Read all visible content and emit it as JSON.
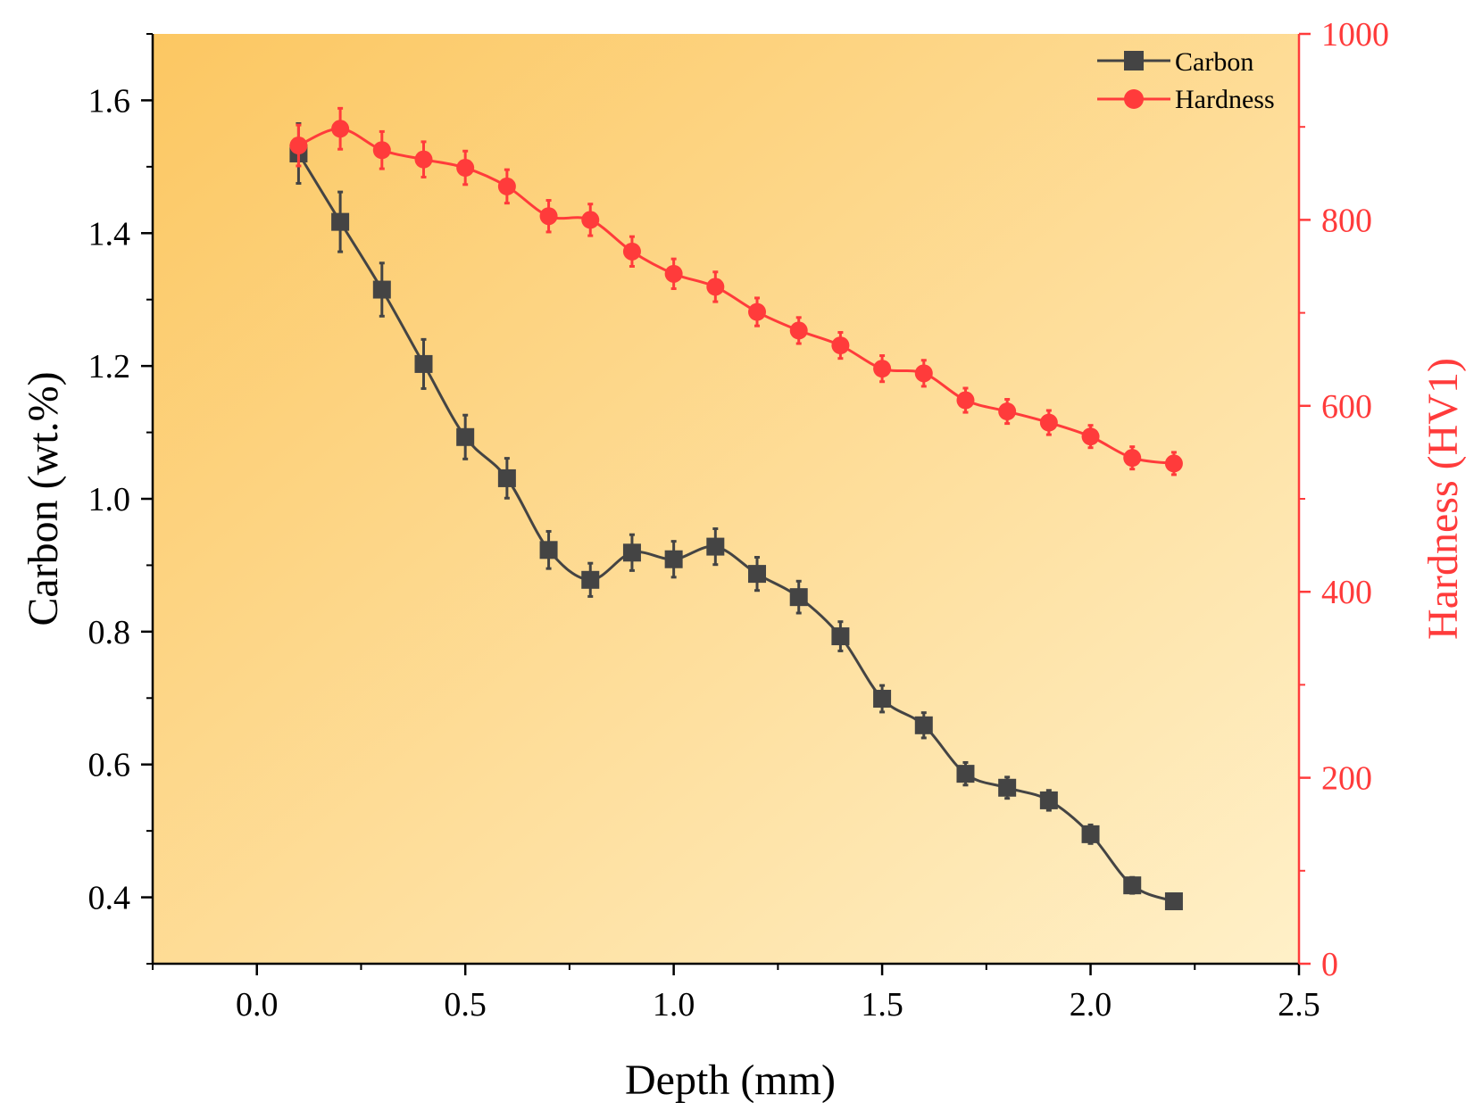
{
  "chart_data": {
    "type": "line",
    "xlabel": "Depth (mm)",
    "ylabel_left": "Carbon (wt.%)",
    "ylabel_right": "Hardness (HV1)",
    "xlim": [
      -0.25,
      2.5
    ],
    "ylim_left": [
      0.3,
      1.7
    ],
    "ylim_right": [
      0,
      1000
    ],
    "x_ticks": [
      "0.0",
      "0.5",
      "1.0",
      "1.5",
      "2.0",
      "2.5"
    ],
    "y_left_ticks": [
      "0.4",
      "0.6",
      "0.8",
      "1.0",
      "1.2",
      "1.4",
      "1.6"
    ],
    "y_right_ticks": [
      "0",
      "200",
      "400",
      "600",
      "800",
      "1000"
    ],
    "background_gradient": [
      "#fcc762",
      "#fff0c8"
    ],
    "legend": [
      "Carbon",
      "Hardness"
    ],
    "legend_position": "top-right",
    "series": [
      {
        "name": "Carbon",
        "axis": "left",
        "color": "#444444",
        "marker": "square",
        "x": [
          0.1,
          0.2,
          0.3,
          0.4,
          0.5,
          0.6,
          0.7,
          0.8,
          0.9,
          1.0,
          1.1,
          1.2,
          1.3,
          1.4,
          1.5,
          1.6,
          1.7,
          1.8,
          1.9,
          2.0,
          2.1,
          2.2
        ],
        "values": [
          1.52,
          1.417,
          1.315,
          1.203,
          1.093,
          1.031,
          0.923,
          0.878,
          0.919,
          0.909,
          0.928,
          0.887,
          0.852,
          0.793,
          0.699,
          0.659,
          0.586,
          0.565,
          0.546,
          0.495,
          0.418,
          0.394
        ],
        "errors": [
          0.045,
          0.045,
          0.04,
          0.037,
          0.033,
          0.03,
          0.028,
          0.025,
          0.027,
          0.027,
          0.027,
          0.025,
          0.024,
          0.022,
          0.02,
          0.019,
          0.017,
          0.016,
          0.015,
          0.014,
          0.012,
          0.011
        ]
      },
      {
        "name": "Hardness",
        "axis": "right",
        "color": "#ff3b3b",
        "marker": "circle",
        "x": [
          0.1,
          0.2,
          0.3,
          0.4,
          0.5,
          0.6,
          0.7,
          0.8,
          0.9,
          1.0,
          1.1,
          1.2,
          1.3,
          1.4,
          1.5,
          1.6,
          1.7,
          1.8,
          1.9,
          2.0,
          2.1,
          2.2
        ],
        "values": [
          880,
          898,
          875,
          865,
          856,
          836,
          804,
          800,
          766,
          742,
          728,
          701,
          681,
          665,
          640,
          635,
          606,
          594,
          582,
          567,
          544,
          538
        ],
        "errors": [
          22,
          22,
          20,
          19,
          18,
          18,
          17,
          17,
          16,
          16,
          16,
          15,
          14,
          14,
          14,
          14,
          13,
          13,
          13,
          12,
          12,
          12
        ]
      }
    ]
  }
}
